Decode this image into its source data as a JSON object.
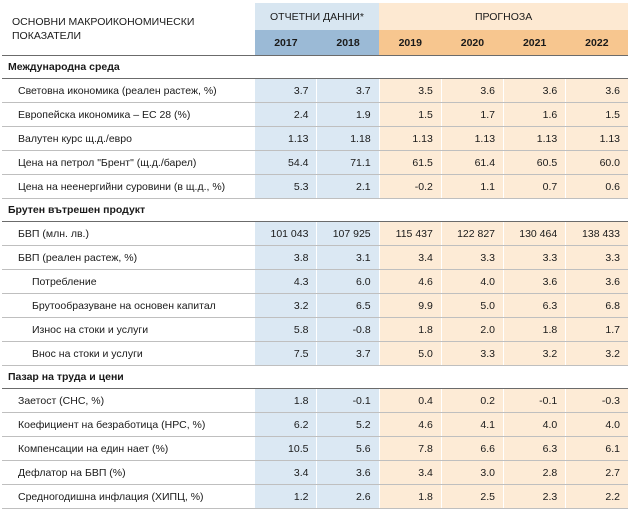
{
  "header": {
    "label": "ОСНОВНИ МАКРОИКОНОМИЧЕСКИ ПОКАЗАТЕЛИ",
    "actual_group": "ОТЧЕТНИ ДАННИ*",
    "forecast_group": "ПРОГНОЗА",
    "years": [
      "2017",
      "2018",
      "2019",
      "2020",
      "2021",
      "2022"
    ]
  },
  "sections": [
    {
      "title": "Международна среда",
      "rows": [
        {
          "label": "Световна икономика (реален растеж, %)",
          "values": [
            "3.7",
            "3.7",
            "3.5",
            "3.6",
            "3.6",
            "3.6"
          ],
          "indent": false
        },
        {
          "label": "Европейска икономика – ЕС 28 (%)",
          "values": [
            "2.4",
            "1.9",
            "1.5",
            "1.7",
            "1.6",
            "1.5"
          ],
          "indent": false
        },
        {
          "label": "Валутен курс щ.д./евро",
          "values": [
            "1.13",
            "1.18",
            "1.13",
            "1.13",
            "1.13",
            "1.13"
          ],
          "indent": false
        },
        {
          "label": "Цена на петрол \"Брент\" (щ.д./барел)",
          "values": [
            "54.4",
            "71.1",
            "61.5",
            "61.4",
            "60.5",
            "60.0"
          ],
          "indent": false
        },
        {
          "label": "Цена на неенергийни суровини (в щ.д., %)",
          "values": [
            "5.3",
            "2.1",
            "-0.2",
            "1.1",
            "0.7",
            "0.6"
          ],
          "indent": false
        }
      ]
    },
    {
      "title": "Брутен вътрешен продукт",
      "rows": [
        {
          "label": "БВП (млн. лв.)",
          "values": [
            "101 043",
            "107 925",
            "115 437",
            "122 827",
            "130 464",
            "138 433"
          ],
          "indent": false
        },
        {
          "label": "БВП (реален растеж, %)",
          "values": [
            "3.8",
            "3.1",
            "3.4",
            "3.3",
            "3.3",
            "3.3"
          ],
          "indent": false
        },
        {
          "label": "Потребление",
          "values": [
            "4.3",
            "6.0",
            "4.6",
            "4.0",
            "3.6",
            "3.6"
          ],
          "indent": true
        },
        {
          "label": "Брутообразуване на основен капитал",
          "values": [
            "3.2",
            "6.5",
            "9.9",
            "5.0",
            "6.3",
            "6.8"
          ],
          "indent": true
        },
        {
          "label": "Износ на стоки и услуги",
          "values": [
            "5.8",
            "-0.8",
            "1.8",
            "2.0",
            "1.8",
            "1.7"
          ],
          "indent": true
        },
        {
          "label": "Внос на стоки и услуги",
          "values": [
            "7.5",
            "3.7",
            "5.0",
            "3.3",
            "3.2",
            "3.2"
          ],
          "indent": true
        }
      ]
    },
    {
      "title": "Пазар на труда и цени",
      "rows": [
        {
          "label": "Заетост (СНС, %)",
          "values": [
            "1.8",
            "-0.1",
            "0.4",
            "0.2",
            "-0.1",
            "-0.3"
          ],
          "indent": false
        },
        {
          "label": "Коефициент на безработица (НРС, %)",
          "values": [
            "6.2",
            "5.2",
            "4.6",
            "4.1",
            "4.0",
            "4.0"
          ],
          "indent": false
        },
        {
          "label": "Компенсации на един нает (%)",
          "values": [
            "10.5",
            "5.6",
            "7.8",
            "6.6",
            "6.3",
            "6.1"
          ],
          "indent": false
        },
        {
          "label": "Дефлатор на БВП (%)",
          "values": [
            "3.4",
            "3.6",
            "3.4",
            "3.0",
            "2.8",
            "2.7"
          ],
          "indent": false
        },
        {
          "label": "Средногодишна инфлация (ХИПЦ, %)",
          "values": [
            "1.2",
            "2.6",
            "1.8",
            "2.5",
            "2.3",
            "2.2"
          ],
          "indent": false
        }
      ]
    }
  ]
}
